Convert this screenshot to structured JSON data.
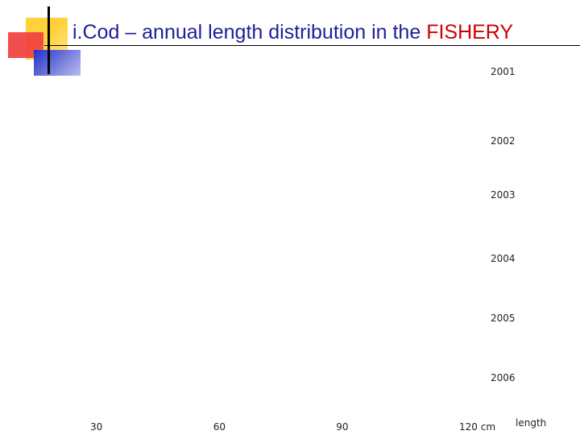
{
  "slide": {
    "title_main": "i.Cod – annual length distribution in the ",
    "title_accent": "FISHERY",
    "accent_color": "#CC0000",
    "title_color": "#1E1E9A"
  },
  "chart_data": {
    "type": "area",
    "panels": [
      "2001",
      "2002",
      "2003",
      "2004",
      "2005",
      "2006"
    ],
    "x_ticks": [
      {
        "value": 30,
        "label": "30"
      },
      {
        "value": 60,
        "label": "60"
      },
      {
        "value": 90,
        "label": "90"
      },
      {
        "value": 120,
        "label": "120 cm"
      }
    ],
    "xlabel": "length",
    "grid": false
  }
}
